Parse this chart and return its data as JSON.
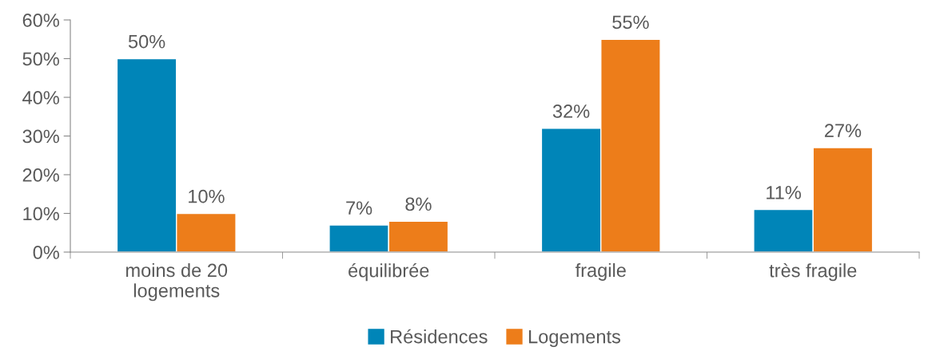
{
  "chart_data": {
    "type": "bar",
    "categories": [
      "moins de 20\nlogements",
      "équilibrée",
      "fragile",
      "très fragile"
    ],
    "series": [
      {
        "name": "Résidences",
        "color": "#0085b8",
        "values": [
          50,
          7,
          32,
          11
        ]
      },
      {
        "name": "Logements",
        "color": "#ed7d1a",
        "values": [
          10,
          8,
          55,
          27
        ]
      }
    ],
    "ylim": [
      0,
      60
    ],
    "yticks": [
      {
        "value": 0,
        "label": "0%"
      },
      {
        "value": 10,
        "label": "10%"
      },
      {
        "value": 20,
        "label": "20%"
      },
      {
        "value": 30,
        "label": "30%"
      },
      {
        "value": 40,
        "label": "40%"
      },
      {
        "value": 50,
        "label": "50%"
      },
      {
        "value": 60,
        "label": "60%"
      }
    ],
    "value_labels": [
      [
        "50%",
        "7%",
        "32%",
        "11%"
      ],
      [
        "10%",
        "8%",
        "55%",
        "27%"
      ]
    ],
    "grid": false,
    "legend": "bottom"
  }
}
